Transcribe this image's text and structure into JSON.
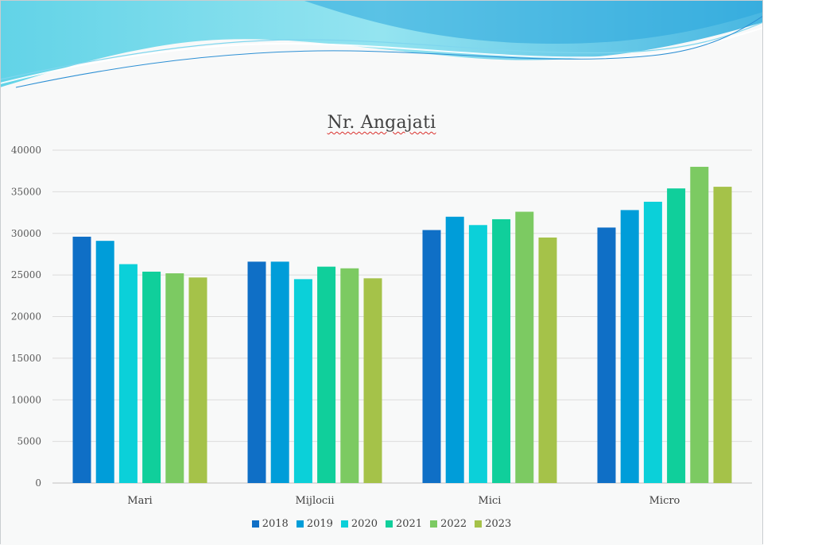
{
  "chart_data": {
    "type": "bar",
    "title": "Nr. Angajati",
    "categories": [
      "Mari",
      "Mijlocii",
      "Mici",
      "Micro"
    ],
    "series": [
      {
        "name": "2018",
        "color": "#0f6fc6",
        "values": [
          29600,
          26600,
          30400,
          30700
        ]
      },
      {
        "name": "2019",
        "color": "#009dd9",
        "values": [
          29100,
          26600,
          32000,
          32800
        ]
      },
      {
        "name": "2020",
        "color": "#0bd0d9",
        "values": [
          26300,
          24500,
          31000,
          33800
        ]
      },
      {
        "name": "2021",
        "color": "#10cf9b",
        "values": [
          25400,
          26000,
          31700,
          35400
        ]
      },
      {
        "name": "2022",
        "color": "#7cca62",
        "values": [
          25200,
          25800,
          32600,
          38000
        ]
      },
      {
        "name": "2023",
        "color": "#a5c249",
        "values": [
          24700,
          24600,
          29500,
          35600
        ]
      }
    ],
    "ylim": [
      0,
      40000
    ],
    "yticks": [
      0,
      5000,
      10000,
      15000,
      20000,
      25000,
      30000,
      35000,
      40000
    ],
    "grid": true,
    "legend_position": "bottom"
  }
}
